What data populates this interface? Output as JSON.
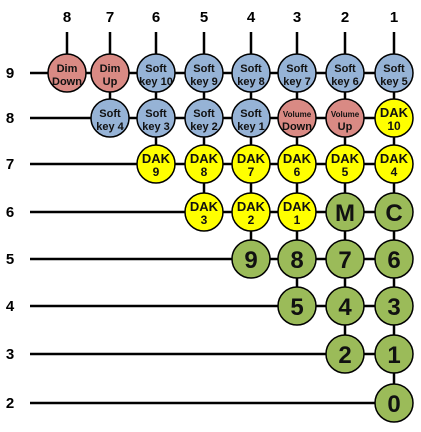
{
  "colors": {
    "soft": "#96b3d6",
    "dim": "#d98a84",
    "dak": "#ffff00",
    "digit": "#9bbb59",
    "line": "#000000"
  },
  "columns": [
    "8",
    "7",
    "6",
    "5",
    "4",
    "3",
    "2",
    "1"
  ],
  "rows": [
    "9",
    "8",
    "7",
    "6",
    "5",
    "4",
    "3",
    "2"
  ],
  "buttons": [
    {
      "row": "9",
      "col": "8",
      "kind": "dim",
      "label": [
        "Dim",
        "Down"
      ]
    },
    {
      "row": "9",
      "col": "7",
      "kind": "dim",
      "label": [
        "Dim",
        "Up"
      ]
    },
    {
      "row": "9",
      "col": "6",
      "kind": "soft",
      "label": [
        "Soft",
        "key 10"
      ]
    },
    {
      "row": "9",
      "col": "5",
      "kind": "soft",
      "label": [
        "Soft",
        "key 9"
      ]
    },
    {
      "row": "9",
      "col": "4",
      "kind": "soft",
      "label": [
        "Soft",
        "key 8"
      ]
    },
    {
      "row": "9",
      "col": "3",
      "kind": "soft",
      "label": [
        "Soft",
        "key 7"
      ]
    },
    {
      "row": "9",
      "col": "2",
      "kind": "soft",
      "label": [
        "Soft",
        "key 6"
      ]
    },
    {
      "row": "9",
      "col": "1",
      "kind": "soft",
      "label": [
        "Soft",
        "key 5"
      ]
    },
    {
      "row": "8",
      "col": "7",
      "kind": "soft",
      "label": [
        "Soft",
        "key 4"
      ]
    },
    {
      "row": "8",
      "col": "6",
      "kind": "soft",
      "label": [
        "Soft",
        "key 3"
      ]
    },
    {
      "row": "8",
      "col": "5",
      "kind": "soft",
      "label": [
        "Soft",
        "key 2"
      ]
    },
    {
      "row": "8",
      "col": "4",
      "kind": "soft",
      "label": [
        "Soft",
        "key 1"
      ]
    },
    {
      "row": "8",
      "col": "3",
      "kind": "dim",
      "label": [
        "Volume",
        "Down"
      ]
    },
    {
      "row": "8",
      "col": "2",
      "kind": "dim",
      "label": [
        "Volume",
        "Up"
      ]
    },
    {
      "row": "8",
      "col": "1",
      "kind": "dak",
      "label": [
        "DAK",
        "10"
      ]
    },
    {
      "row": "7",
      "col": "6",
      "kind": "dak",
      "label": [
        "DAK",
        "9"
      ]
    },
    {
      "row": "7",
      "col": "5",
      "kind": "dak",
      "label": [
        "DAK",
        "8"
      ]
    },
    {
      "row": "7",
      "col": "4",
      "kind": "dak",
      "label": [
        "DAK",
        "7"
      ]
    },
    {
      "row": "7",
      "col": "3",
      "kind": "dak",
      "label": [
        "DAK",
        "6"
      ]
    },
    {
      "row": "7",
      "col": "2",
      "kind": "dak",
      "label": [
        "DAK",
        "5"
      ]
    },
    {
      "row": "7",
      "col": "1",
      "kind": "dak",
      "label": [
        "DAK",
        "4"
      ]
    },
    {
      "row": "6",
      "col": "5",
      "kind": "dak",
      "label": [
        "DAK",
        "3"
      ]
    },
    {
      "row": "6",
      "col": "4",
      "kind": "dak",
      "label": [
        "DAK",
        "2"
      ]
    },
    {
      "row": "6",
      "col": "3",
      "kind": "dak",
      "label": [
        "DAK",
        "1"
      ]
    },
    {
      "row": "6",
      "col": "2",
      "kind": "digit",
      "label": [
        "M"
      ]
    },
    {
      "row": "6",
      "col": "1",
      "kind": "digit",
      "label": [
        "C"
      ]
    },
    {
      "row": "5",
      "col": "4",
      "kind": "digit",
      "label": [
        "9"
      ]
    },
    {
      "row": "5",
      "col": "3",
      "kind": "digit",
      "label": [
        "8"
      ]
    },
    {
      "row": "5",
      "col": "2",
      "kind": "digit",
      "label": [
        "7"
      ]
    },
    {
      "row": "5",
      "col": "1",
      "kind": "digit",
      "label": [
        "6"
      ]
    },
    {
      "row": "4",
      "col": "3",
      "kind": "digit",
      "label": [
        "5"
      ]
    },
    {
      "row": "4",
      "col": "2",
      "kind": "digit",
      "label": [
        "4"
      ]
    },
    {
      "row": "4",
      "col": "1",
      "kind": "digit",
      "label": [
        "3"
      ]
    },
    {
      "row": "3",
      "col": "2",
      "kind": "digit",
      "label": [
        "2"
      ]
    },
    {
      "row": "3",
      "col": "1",
      "kind": "digit",
      "label": [
        "1"
      ]
    },
    {
      "row": "2",
      "col": "1",
      "kind": "digit",
      "label": [
        "0"
      ]
    }
  ]
}
